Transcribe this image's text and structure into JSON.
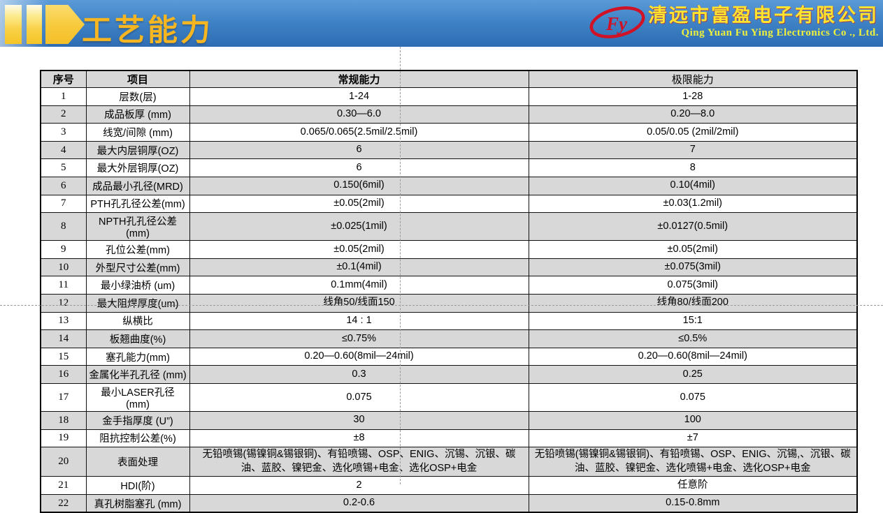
{
  "header": {
    "title": "工艺能力",
    "title_color": "#f6b622",
    "banner_color_top": "#5b9ad8",
    "banner_color_bottom": "#2e6cb3",
    "logo_accent_yellow": "#f8c93a",
    "logo_monogram": "Fy",
    "logo_red": "#d01126",
    "company_name_cn": "清远市富盈电子有限公司",
    "company_name_en": "Qing Yuan Fu Ying Electronics Co ., Ltd.",
    "company_name_color": "#ffe52e"
  },
  "table": {
    "headers": [
      "序号",
      "项目",
      "常规能力",
      "极限能力"
    ],
    "rows": [
      [
        "1",
        "层数(层)",
        "1-24",
        "1-28"
      ],
      [
        "2",
        "成品板厚 (mm)",
        "0.30—6.0",
        "0.20—8.0"
      ],
      [
        "3",
        "线宽/间隙 (mm)",
        "0.065/0.065(2.5mil/2.5mil)",
        "0.05/0.05 (2mil/2mil)"
      ],
      [
        "4",
        "最大内层铜厚(OZ)",
        "6",
        "7"
      ],
      [
        "5",
        "最大外层铜厚(OZ)",
        "6",
        "8"
      ],
      [
        "6",
        "成品最小孔径(MRD)",
        "0.150(6mil)",
        "0.10(4mil)"
      ],
      [
        "7",
        "PTH孔孔径公差(mm)",
        "±0.05(2mil)",
        "±0.03(1.2mil)"
      ],
      [
        "8",
        "NPTH孔孔径公差(mm)",
        "±0.025(1mil)",
        "±0.0127(0.5mil)"
      ],
      [
        "9",
        "孔位公差(mm)",
        "±0.05(2mil)",
        "±0.05(2mil)"
      ],
      [
        "10",
        "外型尺寸公差(mm)",
        "±0.1(4mil)",
        "±0.075(3mil)"
      ],
      [
        "11",
        "最小绿油桥 (um)",
        "0.1mm(4mil)",
        "0.075(3mil)"
      ],
      [
        "12",
        "最大阻焊厚度(um)",
        "线角50/线面150",
        "线角80/线面200"
      ],
      [
        "13",
        "纵横比",
        "14 : 1",
        "15:1"
      ],
      [
        "14",
        "板翘曲度(%)",
        "≤0.75%",
        "≤0.5%"
      ],
      [
        "15",
        "塞孔能力(mm)",
        "0.20—0.60(8mil—24mil)",
        "0.20—0.60(8mil—24mil)"
      ],
      [
        "16",
        "金属化半孔孔径 (mm)",
        "0.3",
        "0.25"
      ],
      [
        "17",
        "最小LASER孔径 (mm)",
        "0.075",
        "0.075"
      ],
      [
        "18",
        "金手指厚度 (U”)",
        "30",
        "100"
      ],
      [
        "19",
        "阻抗控制公差(%)",
        "±8",
        "±7"
      ],
      [
        "20",
        "表面处理",
        "无铅喷锡(锡镍铜&锡银铜)、有铅喷锡、OSP、ENIG、沉锡、沉银、碳油、蓝胶、镍钯金、选化喷锡+电金、选化OSP+电金",
        "无铅喷锡(锡镍铜&锡银铜)、有铅喷锡、OSP、ENIG、沉锡,、沉银、碳油、蓝胶、镍钯金、选化喷锡+电金、选化OSP+电金"
      ],
      [
        "21",
        "HDI(阶)",
        "2",
        "任意阶"
      ],
      [
        "22",
        "真孔树脂塞孔 (mm)",
        "0.2-0.6",
        "0.15-0.8mm"
      ]
    ]
  }
}
